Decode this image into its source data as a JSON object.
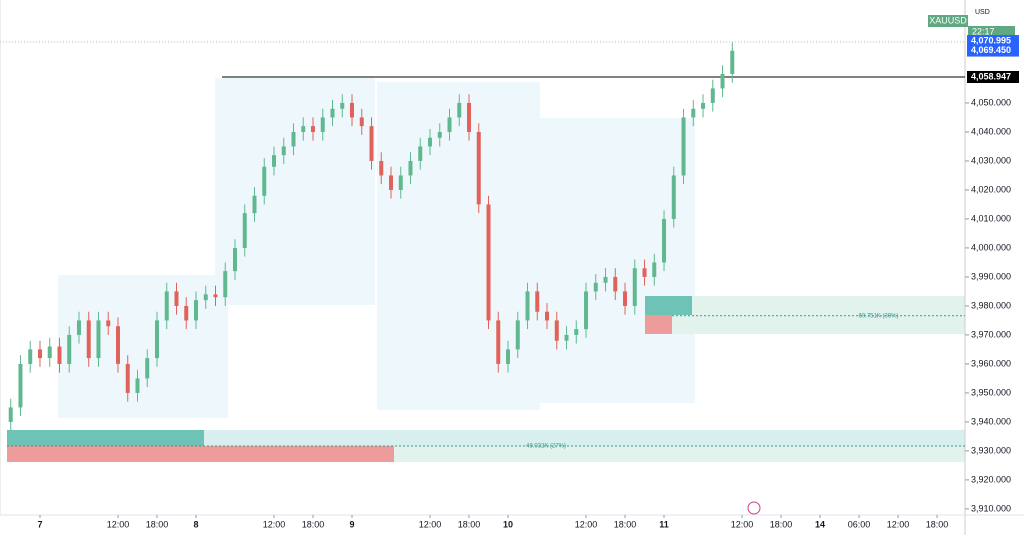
{
  "chart_data": {
    "type": "candlestick",
    "symbol": "XAUUSD",
    "currency": "USD",
    "countdown": "22:17",
    "up_color": "#5fb88f",
    "down_color": "#e0625a",
    "x": [
      -4.5,
      -3,
      -1.5,
      0,
      1.5,
      3,
      4.5,
      6,
      7.5,
      9,
      10.5,
      12,
      13.5,
      15,
      16.5,
      18,
      19.5,
      21,
      22.5,
      24,
      25.5,
      27,
      28.5,
      30,
      31.5,
      33,
      34.5,
      36,
      37.5,
      39,
      40.5,
      42,
      43.5,
      45,
      46.5,
      48,
      49.5,
      51,
      52.5,
      54,
      55.5,
      57,
      58.5,
      60,
      61.5,
      63,
      64.5,
      66,
      67.5,
      69,
      70.5,
      72,
      73.5,
      75,
      76.5,
      78,
      79.5,
      81,
      82.5,
      84,
      85.5,
      87,
      88.5,
      90,
      91.5,
      93,
      94.5,
      96,
      97.5,
      99,
      100.5,
      102,
      103.5,
      105,
      106.5
    ],
    "open": [
      3940,
      3945,
      3960,
      3965,
      3962,
      3966,
      3960,
      3970,
      3975,
      3962,
      3975,
      3973,
      3960,
      3950,
      3955,
      3962,
      3975,
      3985,
      3980,
      3975,
      3982,
      3984,
      3983,
      3992,
      4000,
      4012,
      4018,
      4028,
      4032,
      4035,
      4040,
      4042,
      4040,
      4045,
      4048,
      4050,
      4045,
      4042,
      4030,
      4025,
      4020,
      4025,
      4030,
      4035,
      4038,
      4040,
      4045,
      4050,
      4040,
      4015,
      3975,
      3960,
      3965,
      3975,
      3985,
      3978,
      3975,
      3968,
      3970,
      3972,
      3985,
      3988,
      3990,
      3985,
      3980,
      3993,
      3990,
      3995,
      4010,
      4025,
      4045,
      4048,
      4050,
      4055,
      4060
    ],
    "high": [
      3948,
      3963,
      3968,
      3968,
      3969,
      3969,
      3973,
      3978,
      3978,
      3978,
      3978,
      3976,
      3963,
      3958,
      3965,
      3978,
      3988,
      3988,
      3983,
      3985,
      3987,
      3987,
      3995,
      4003,
      4015,
      4021,
      4031,
      4035,
      4038,
      4043,
      4045,
      4045,
      4048,
      4051,
      4053,
      4053,
      4048,
      4045,
      4033,
      4028,
      4028,
      4033,
      4038,
      4041,
      4043,
      4048,
      4053,
      4053,
      4043,
      4018,
      3978,
      3968,
      3978,
      3988,
      3988,
      3981,
      3978,
      3973,
      3975,
      3988,
      3991,
      3993,
      3993,
      3988,
      3996,
      3996,
      3998,
      4013,
      4028,
      4048,
      4051,
      4053,
      4058,
      4063,
      4071
    ],
    "low": [
      3937,
      3942,
      3957,
      3959,
      3959,
      3957,
      3957,
      3967,
      3959,
      3959,
      3970,
      3957,
      3947,
      3947,
      3952,
      3959,
      3972,
      3977,
      3972,
      3972,
      3979,
      3980,
      3980,
      3989,
      3997,
      4009,
      4015,
      4025,
      4029,
      4032,
      4037,
      4037,
      4037,
      4042,
      4045,
      4042,
      4039,
      4027,
      4022,
      4017,
      4017,
      4022,
      4027,
      4032,
      4035,
      4037,
      4042,
      4037,
      4012,
      3972,
      3957,
      3957,
      3962,
      3972,
      3975,
      3972,
      3965,
      3965,
      3967,
      3969,
      3982,
      3985,
      3982,
      3977,
      3977,
      3987,
      3987,
      3992,
      4007,
      4022,
      4042,
      4045,
      4047,
      4052,
      4057
    ],
    "close": [
      3945,
      3960,
      3965,
      3962,
      3966,
      3960,
      3970,
      3975,
      3962,
      3975,
      3973,
      3960,
      3950,
      3955,
      3962,
      3975,
      3985,
      3980,
      3975,
      3982,
      3984,
      3983,
      3992,
      4000,
      4012,
      4018,
      4028,
      4032,
      4035,
      4040,
      4042,
      4040,
      4045,
      4048,
      4050,
      4045,
      4042,
      4030,
      4025,
      4020,
      4025,
      4030,
      4035,
      4038,
      4040,
      4045,
      4050,
      4040,
      4015,
      3975,
      3960,
      3965,
      3975,
      3985,
      3978,
      3975,
      3968,
      3970,
      3972,
      3985,
      3988,
      3990,
      3985,
      3980,
      3993,
      3990,
      3995,
      4010,
      4025,
      4045,
      4048,
      4050,
      4055,
      4060,
      4068
    ],
    "xlim": [
      -6.15,
      142.3
    ],
    "ylim": [
      3907.9,
      4085.5
    ],
    "xticks": [
      {
        "value": 0,
        "label": "7"
      },
      {
        "value": 12,
        "label": "12:00"
      },
      {
        "value": 18,
        "label": "18:00"
      },
      {
        "value": 24,
        "label": "8"
      },
      {
        "value": 36,
        "label": "12:00"
      },
      {
        "value": 42,
        "label": "18:00"
      },
      {
        "value": 48,
        "label": "9"
      },
      {
        "value": 60,
        "label": "12:00"
      },
      {
        "value": 66,
        "label": "18:00"
      },
      {
        "value": 72,
        "label": "10"
      },
      {
        "value": 84,
        "label": "12:00"
      },
      {
        "value": 90,
        "label": "18:00"
      },
      {
        "value": 96,
        "label": "11"
      },
      {
        "value": 108,
        "label": "12:00"
      },
      {
        "value": 114,
        "label": "18:00"
      },
      {
        "value": 120,
        "label": "14"
      },
      {
        "value": 126,
        "label": "06:00"
      },
      {
        "value": 132,
        "label": "12:00"
      },
      {
        "value": 138,
        "label": "18:00"
      }
    ],
    "yticks": [
      {
        "value": 4050,
        "label": "4,050.000"
      },
      {
        "value": 4040,
        "label": "4,040.000"
      },
      {
        "value": 4030,
        "label": "4,030.000"
      },
      {
        "value": 4020,
        "label": "4,020.000"
      },
      {
        "value": 4010,
        "label": "4,010.000"
      },
      {
        "value": 4000,
        "label": "4,000.000"
      },
      {
        "value": 3990,
        "label": "3,990.000"
      },
      {
        "value": 3980,
        "label": "3,980.000"
      },
      {
        "value": 3970,
        "label": "3,970.000"
      },
      {
        "value": 3960,
        "label": "3,960.000"
      },
      {
        "value": 3950,
        "label": "3,950.000"
      },
      {
        "value": 3940,
        "label": "3,940.000"
      },
      {
        "value": 3930,
        "label": "3,930.000"
      },
      {
        "value": 3920,
        "label": "3,920.000"
      },
      {
        "value": 3910,
        "label": "3,910.000"
      }
    ],
    "price_labels": [
      {
        "value": 4070.995,
        "label": "4,070.995",
        "color": "#2962ff"
      },
      {
        "value": 4069.45,
        "label": "4,069.450",
        "color": "#2962ff"
      },
      {
        "value": 4058.947,
        "label": "4,058.947",
        "color": "#000000"
      }
    ],
    "annotations": [
      {
        "level": 3976.6,
        "label": "69.751K (39%)"
      },
      {
        "level": 3931.7,
        "label": "48.032K (27%)"
      }
    ]
  }
}
